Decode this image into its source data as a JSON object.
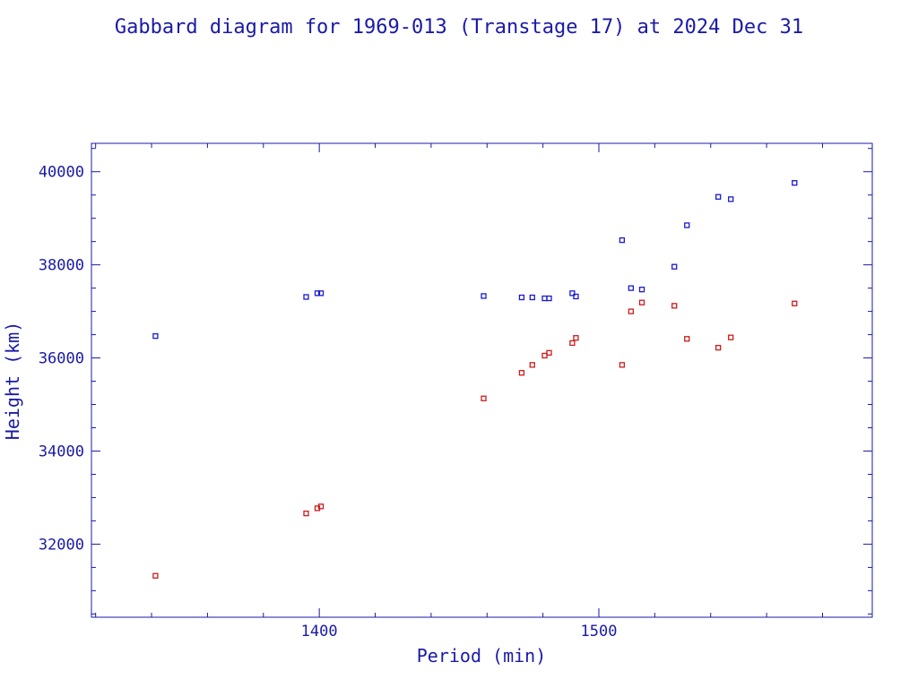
{
  "colors": {
    "axis": "#1a1aa8",
    "apogee": "#1a1ad0",
    "perigee": "#cc1a1a",
    "background": "#ffffff"
  },
  "chart_data": {
    "type": "scatter",
    "title": "Gabbard diagram for 1969-013 (Transtage 17) at 2024 Dec 31",
    "xlabel": "Period (min)",
    "ylabel": "Height (km)",
    "xlim": [
      1318.5,
      1597.8
    ],
    "ylim": [
      30430,
      40610
    ],
    "xticks": [
      1400,
      1500
    ],
    "xtick_labels": [
      "1400",
      "1500"
    ],
    "yticks": [
      32000,
      34000,
      36000,
      38000,
      40000
    ],
    "ytick_labels": [
      "32000",
      "34000",
      "36000",
      "38000",
      "40000"
    ],
    "grid": false,
    "series": [
      {
        "marker": "square",
        "points": [
          [
            1341.4,
            36470
          ],
          [
            1395.3,
            37310
          ],
          [
            1399.3,
            37390
          ],
          [
            1400.6,
            37390
          ],
          [
            1458.8,
            37330
          ],
          [
            1472.4,
            37300
          ],
          [
            1476.2,
            37300
          ],
          [
            1480.6,
            37280
          ],
          [
            1482.2,
            37280
          ],
          [
            1490.5,
            37390
          ],
          [
            1491.8,
            37320
          ],
          [
            1508.3,
            38530
          ],
          [
            1511.5,
            37500
          ],
          [
            1515.4,
            37470
          ],
          [
            1527.0,
            37960
          ],
          [
            1531.5,
            38850
          ],
          [
            1542.7,
            39460
          ],
          [
            1547.2,
            39410
          ],
          [
            1570.0,
            39760
          ]
        ]
      },
      {
        "marker": "square",
        "points": [
          [
            1341.4,
            31320
          ],
          [
            1395.3,
            32660
          ],
          [
            1399.3,
            32770
          ],
          [
            1400.6,
            32810
          ],
          [
            1458.8,
            35130
          ],
          [
            1472.4,
            35680
          ],
          [
            1476.2,
            35850
          ],
          [
            1480.6,
            36050
          ],
          [
            1482.2,
            36110
          ],
          [
            1490.5,
            36320
          ],
          [
            1491.8,
            36430
          ],
          [
            1508.3,
            35850
          ],
          [
            1511.5,
            37000
          ],
          [
            1515.4,
            37190
          ],
          [
            1527.0,
            37120
          ],
          [
            1531.5,
            36410
          ],
          [
            1542.7,
            36220
          ],
          [
            1547.2,
            36440
          ],
          [
            1570.0,
            37170
          ]
        ]
      }
    ]
  }
}
